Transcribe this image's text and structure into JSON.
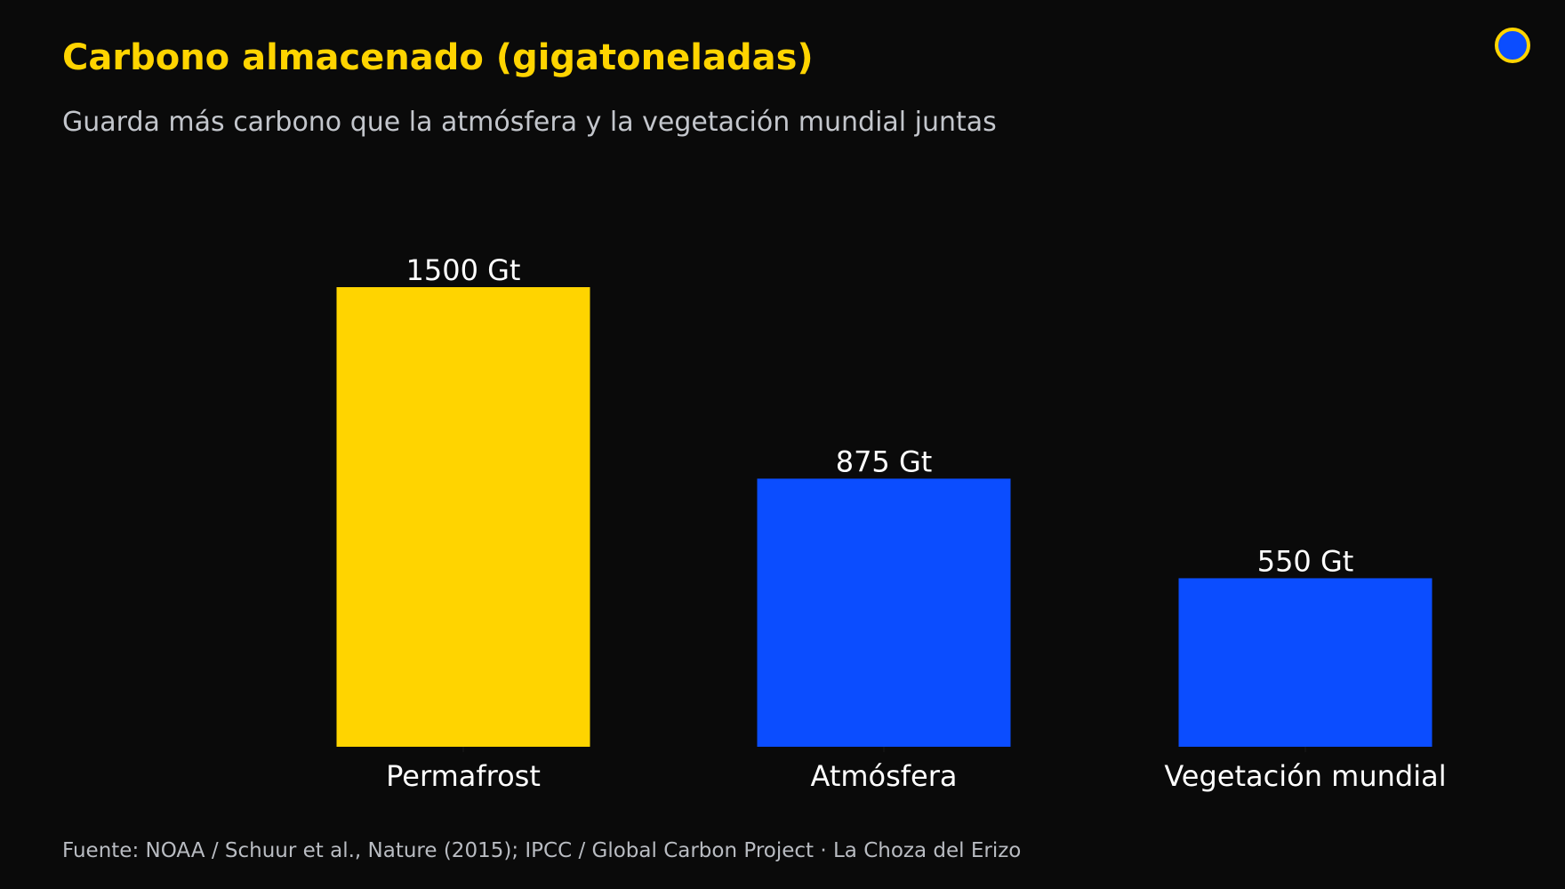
{
  "header": {
    "title": "Carbono almacenado (gigatoneladas)",
    "subtitle": "Guarda más carbono que la atmósfera y la vegetación mundial juntas"
  },
  "footer": {
    "source": "Fuente: NOAA / Schuur et al., Nature (2015); IPCC / Global Carbon Project  ·  La Choza del Erizo"
  },
  "badge": {
    "icon": "circle-badge-icon",
    "fill_color": "#0B4DFF",
    "ring_color": "#FFD400"
  },
  "colors": {
    "background": "#0a0a0a",
    "highlight": "#FFD400",
    "accent": "#0B4DFF",
    "text": "#ffffff"
  },
  "chart_data": {
    "type": "bar",
    "categories": [
      "Permafrost",
      "Atmósfera",
      "Vegetación mundial"
    ],
    "values": [
      1500,
      875,
      550
    ],
    "value_labels": [
      "1500 Gt",
      "875 Gt",
      "550 Gt"
    ],
    "bar_colors": [
      "#FFD400",
      "#0B4DFF",
      "#0B4DFF"
    ],
    "title": "Carbono almacenado (gigatoneladas)",
    "subtitle": "Guarda más carbono que la atmósfera y la vegetación mundial juntas",
    "xlabel": "",
    "ylabel": "",
    "ylim": [
      0,
      1500
    ],
    "grid": false,
    "legend": "none"
  }
}
